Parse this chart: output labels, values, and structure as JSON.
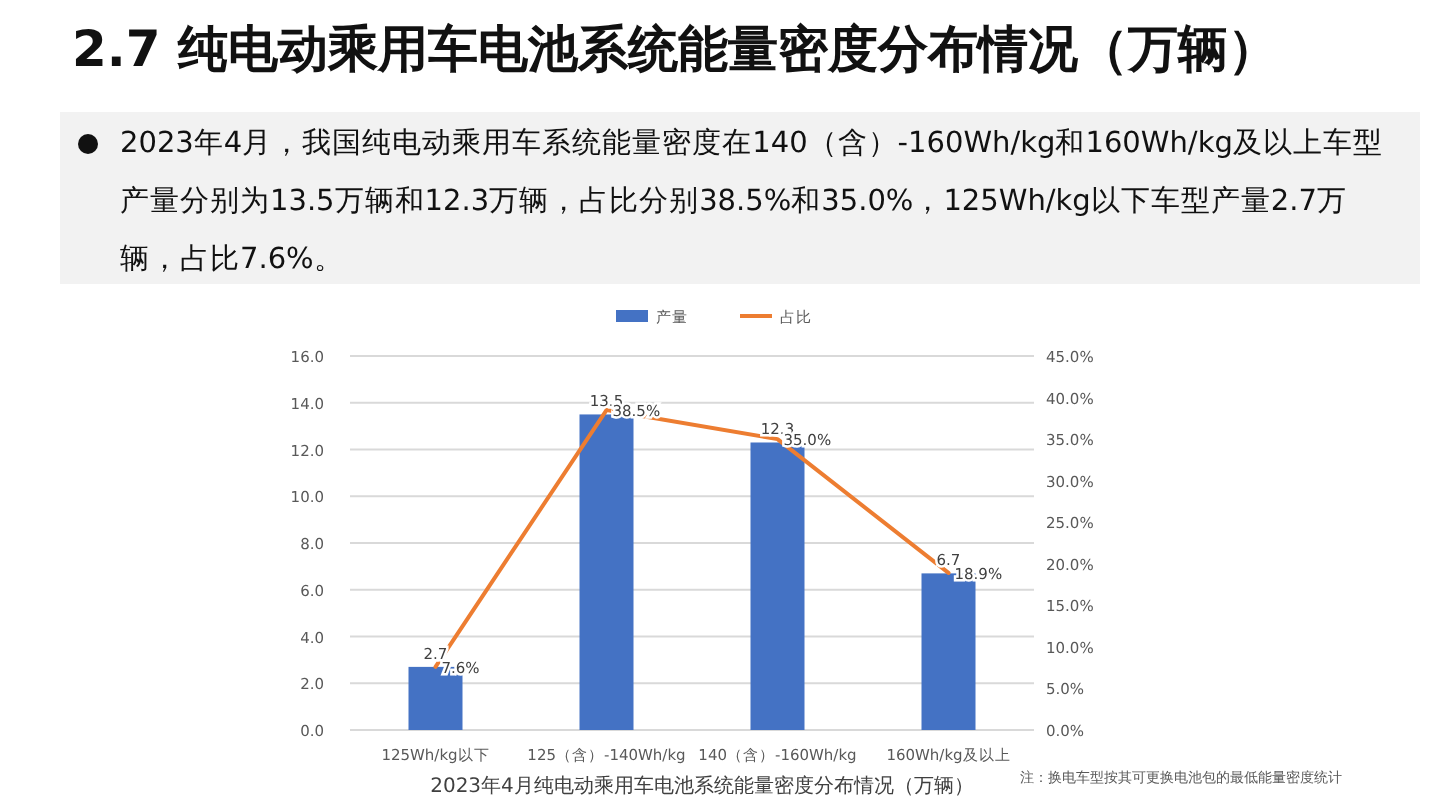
{
  "chart_data": {
    "type": "bar",
    "title": "2.7 纯电动乘用车电池系统能量密度分布情况（万辆）",
    "subtitle": "2023年4月，我国纯电动乘用车系统能量密度在140（含）-160Wh/kg和160Wh/kg及以上车型产量分别为13.5万辆和12.3万辆，占比分别38.5%和35.0%，125Wh/kg以下车型产量2.7万辆，占比7.6%。",
    "xlabel": "2023年4月纯电动乘用车电池系统能量密度分布情况（万辆）",
    "annotations": [
      "注：换电车型按其可更换电池包的最低能量密度统计"
    ],
    "categories": [
      "125Wh/kg以下",
      "125（含）-140Wh/kg",
      "140（含）-160Wh/kg",
      "160Wh/kg及以上"
    ],
    "series": [
      {
        "name": "产量",
        "color": "#4472c4",
        "values": [
          2.7,
          13.5,
          12.3,
          6.7
        ],
        "value_labels": [
          "2.7",
          "13.5",
          "12.3",
          "6.7"
        ]
      },
      {
        "name": "占比",
        "type": "line",
        "axis": "y2",
        "color": "#ed7d31",
        "values": [
          7.6,
          38.5,
          35.0,
          18.9
        ],
        "value_labels": [
          "7.6%",
          "38.5%",
          "35.0%",
          "18.9%"
        ]
      }
    ],
    "ylim": [
      0,
      16
    ],
    "yticks": [
      {
        "value": 0,
        "label": "0.0"
      },
      {
        "value": 2,
        "label": "2.0"
      },
      {
        "value": 4,
        "label": "4.0"
      },
      {
        "value": 6,
        "label": "6.0"
      },
      {
        "value": 8,
        "label": "8.0"
      },
      {
        "value": 10,
        "label": "10.0"
      },
      {
        "value": 12,
        "label": "12.0"
      },
      {
        "value": 14,
        "label": "14.0"
      },
      {
        "value": 16,
        "label": "16.0"
      }
    ],
    "y2lim": [
      0,
      45
    ],
    "y2ticks": [
      {
        "value": 0,
        "label": "0.0%"
      },
      {
        "value": 5,
        "label": "5.0%"
      },
      {
        "value": 10,
        "label": "10.0%"
      },
      {
        "value": 15,
        "label": "15.0%"
      },
      {
        "value": 20,
        "label": "20.0%"
      },
      {
        "value": 25,
        "label": "25.0%"
      },
      {
        "value": 30,
        "label": "30.0%"
      },
      {
        "value": 35,
        "label": "35.0%"
      },
      {
        "value": 40,
        "label": "40.0%"
      },
      {
        "value": 45,
        "label": "45.0%"
      }
    ],
    "grid": "y",
    "legend": "top",
    "marker": "none",
    "line_style": "solid"
  }
}
